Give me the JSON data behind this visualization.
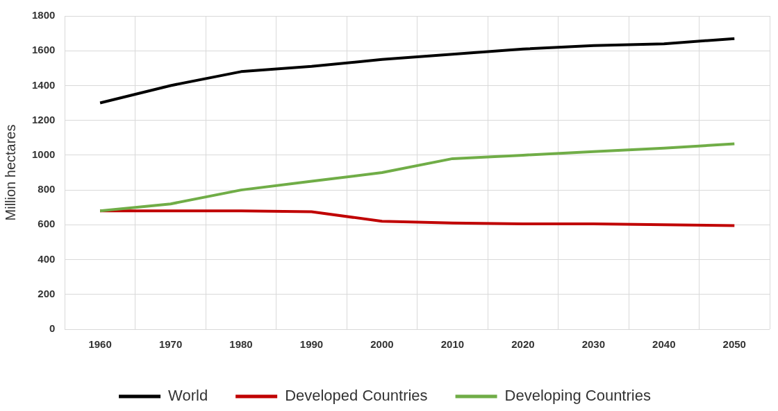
{
  "chart_data": {
    "type": "line",
    "ylabel": "Million hectares",
    "categories": [
      "1960",
      "1970",
      "1980",
      "1990",
      "2000",
      "2010",
      "2020",
      "2030",
      "2040",
      "2050"
    ],
    "series": [
      {
        "name": "World",
        "color": "#000000",
        "values": [
          1300,
          1400,
          1480,
          1510,
          1550,
          1580,
          1610,
          1630,
          1640,
          1670
        ]
      },
      {
        "name": "Developed Countries",
        "color": "#c00000",
        "values": [
          680,
          680,
          680,
          675,
          620,
          610,
          605,
          605,
          600,
          595
        ]
      },
      {
        "name": "Developing Countries",
        "color": "#70ad47",
        "values": [
          680,
          720,
          800,
          850,
          900,
          980,
          1000,
          1020,
          1040,
          1065
        ]
      }
    ],
    "ylim": [
      0,
      1800
    ],
    "yticks": [
      0,
      200,
      400,
      600,
      800,
      1000,
      1200,
      1400,
      1600,
      1800
    ],
    "grid": true,
    "legend": "bottom",
    "marker": "none",
    "line_style": "solid"
  }
}
